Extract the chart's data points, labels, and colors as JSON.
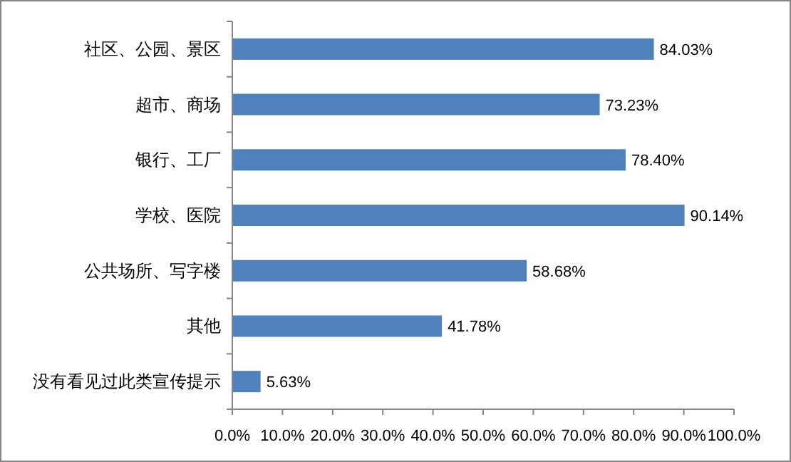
{
  "chart_data": {
    "type": "bar",
    "orientation": "horizontal",
    "categories": [
      "社区、公园、景区",
      "超市、商场",
      "银行、工厂",
      "学校、医院",
      "公共场所、写字楼",
      "其他",
      "没有看见过此类宣传提示"
    ],
    "values": [
      84.03,
      73.23,
      78.4,
      90.14,
      58.68,
      41.78,
      5.63
    ],
    "value_labels": [
      "84.03%",
      "73.23%",
      "78.40%",
      "90.14%",
      "58.68%",
      "41.78%",
      "5.63%"
    ],
    "color": "#4f81bd",
    "xlim": [
      0,
      100
    ],
    "xticks": [
      {
        "value": 0,
        "label": "0.0%"
      },
      {
        "value": 10,
        "label": "10.0%"
      },
      {
        "value": 20,
        "label": "20.0%"
      },
      {
        "value": 30,
        "label": "30.0%"
      },
      {
        "value": 40,
        "label": "40.0%"
      },
      {
        "value": 50,
        "label": "50.0%"
      },
      {
        "value": 60,
        "label": "60.0%"
      },
      {
        "value": 70,
        "label": "70.0%"
      },
      {
        "value": 80,
        "label": "80.0%"
      },
      {
        "value": 90,
        "label": "90.0%"
      },
      {
        "value": 100,
        "label": "100.0%"
      }
    ],
    "data_labels": false
  }
}
